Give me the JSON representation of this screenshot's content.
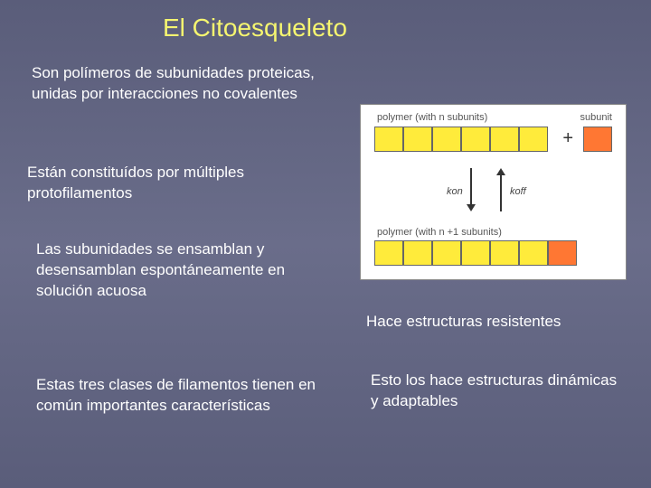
{
  "title": "El Citoesqueleto",
  "paragraphs": {
    "p1": "Son polímeros de subunidades proteicas, unidas por interacciones no covalentes",
    "p2": "Están constituídos por múltiples protofilamentos",
    "p3": "Las subunidades se ensamblan y desensamblan espontáneamente en solución acuosa",
    "p4": "Estas tres clases de filamentos tienen en común importantes características",
    "p5": "Hace estructuras resistentes",
    "p6": "Esto los hace estructuras dinámicas y adaptables"
  },
  "diagram": {
    "label_polymer_n": "polymer (with n subunits)",
    "label_subunit": "subunit",
    "label_polymer_n1": "polymer (with n +1 subunits)",
    "kon": "kon",
    "koff": "koff",
    "plus": "+",
    "colors": {
      "yellow": "#ffeb3b",
      "orange": "#ff7733",
      "border": "#666666",
      "bg": "#ffffff"
    },
    "row1_cells": 6,
    "row2_cells": 7,
    "row2_last_orange": true
  },
  "styling": {
    "title_color": "#f5f570",
    "text_color": "#ffffff",
    "background_gradient": [
      "#5a5d7a",
      "#6a6d8a",
      "#5a5d7a"
    ],
    "title_fontsize": 28,
    "body_fontsize": 17
  }
}
